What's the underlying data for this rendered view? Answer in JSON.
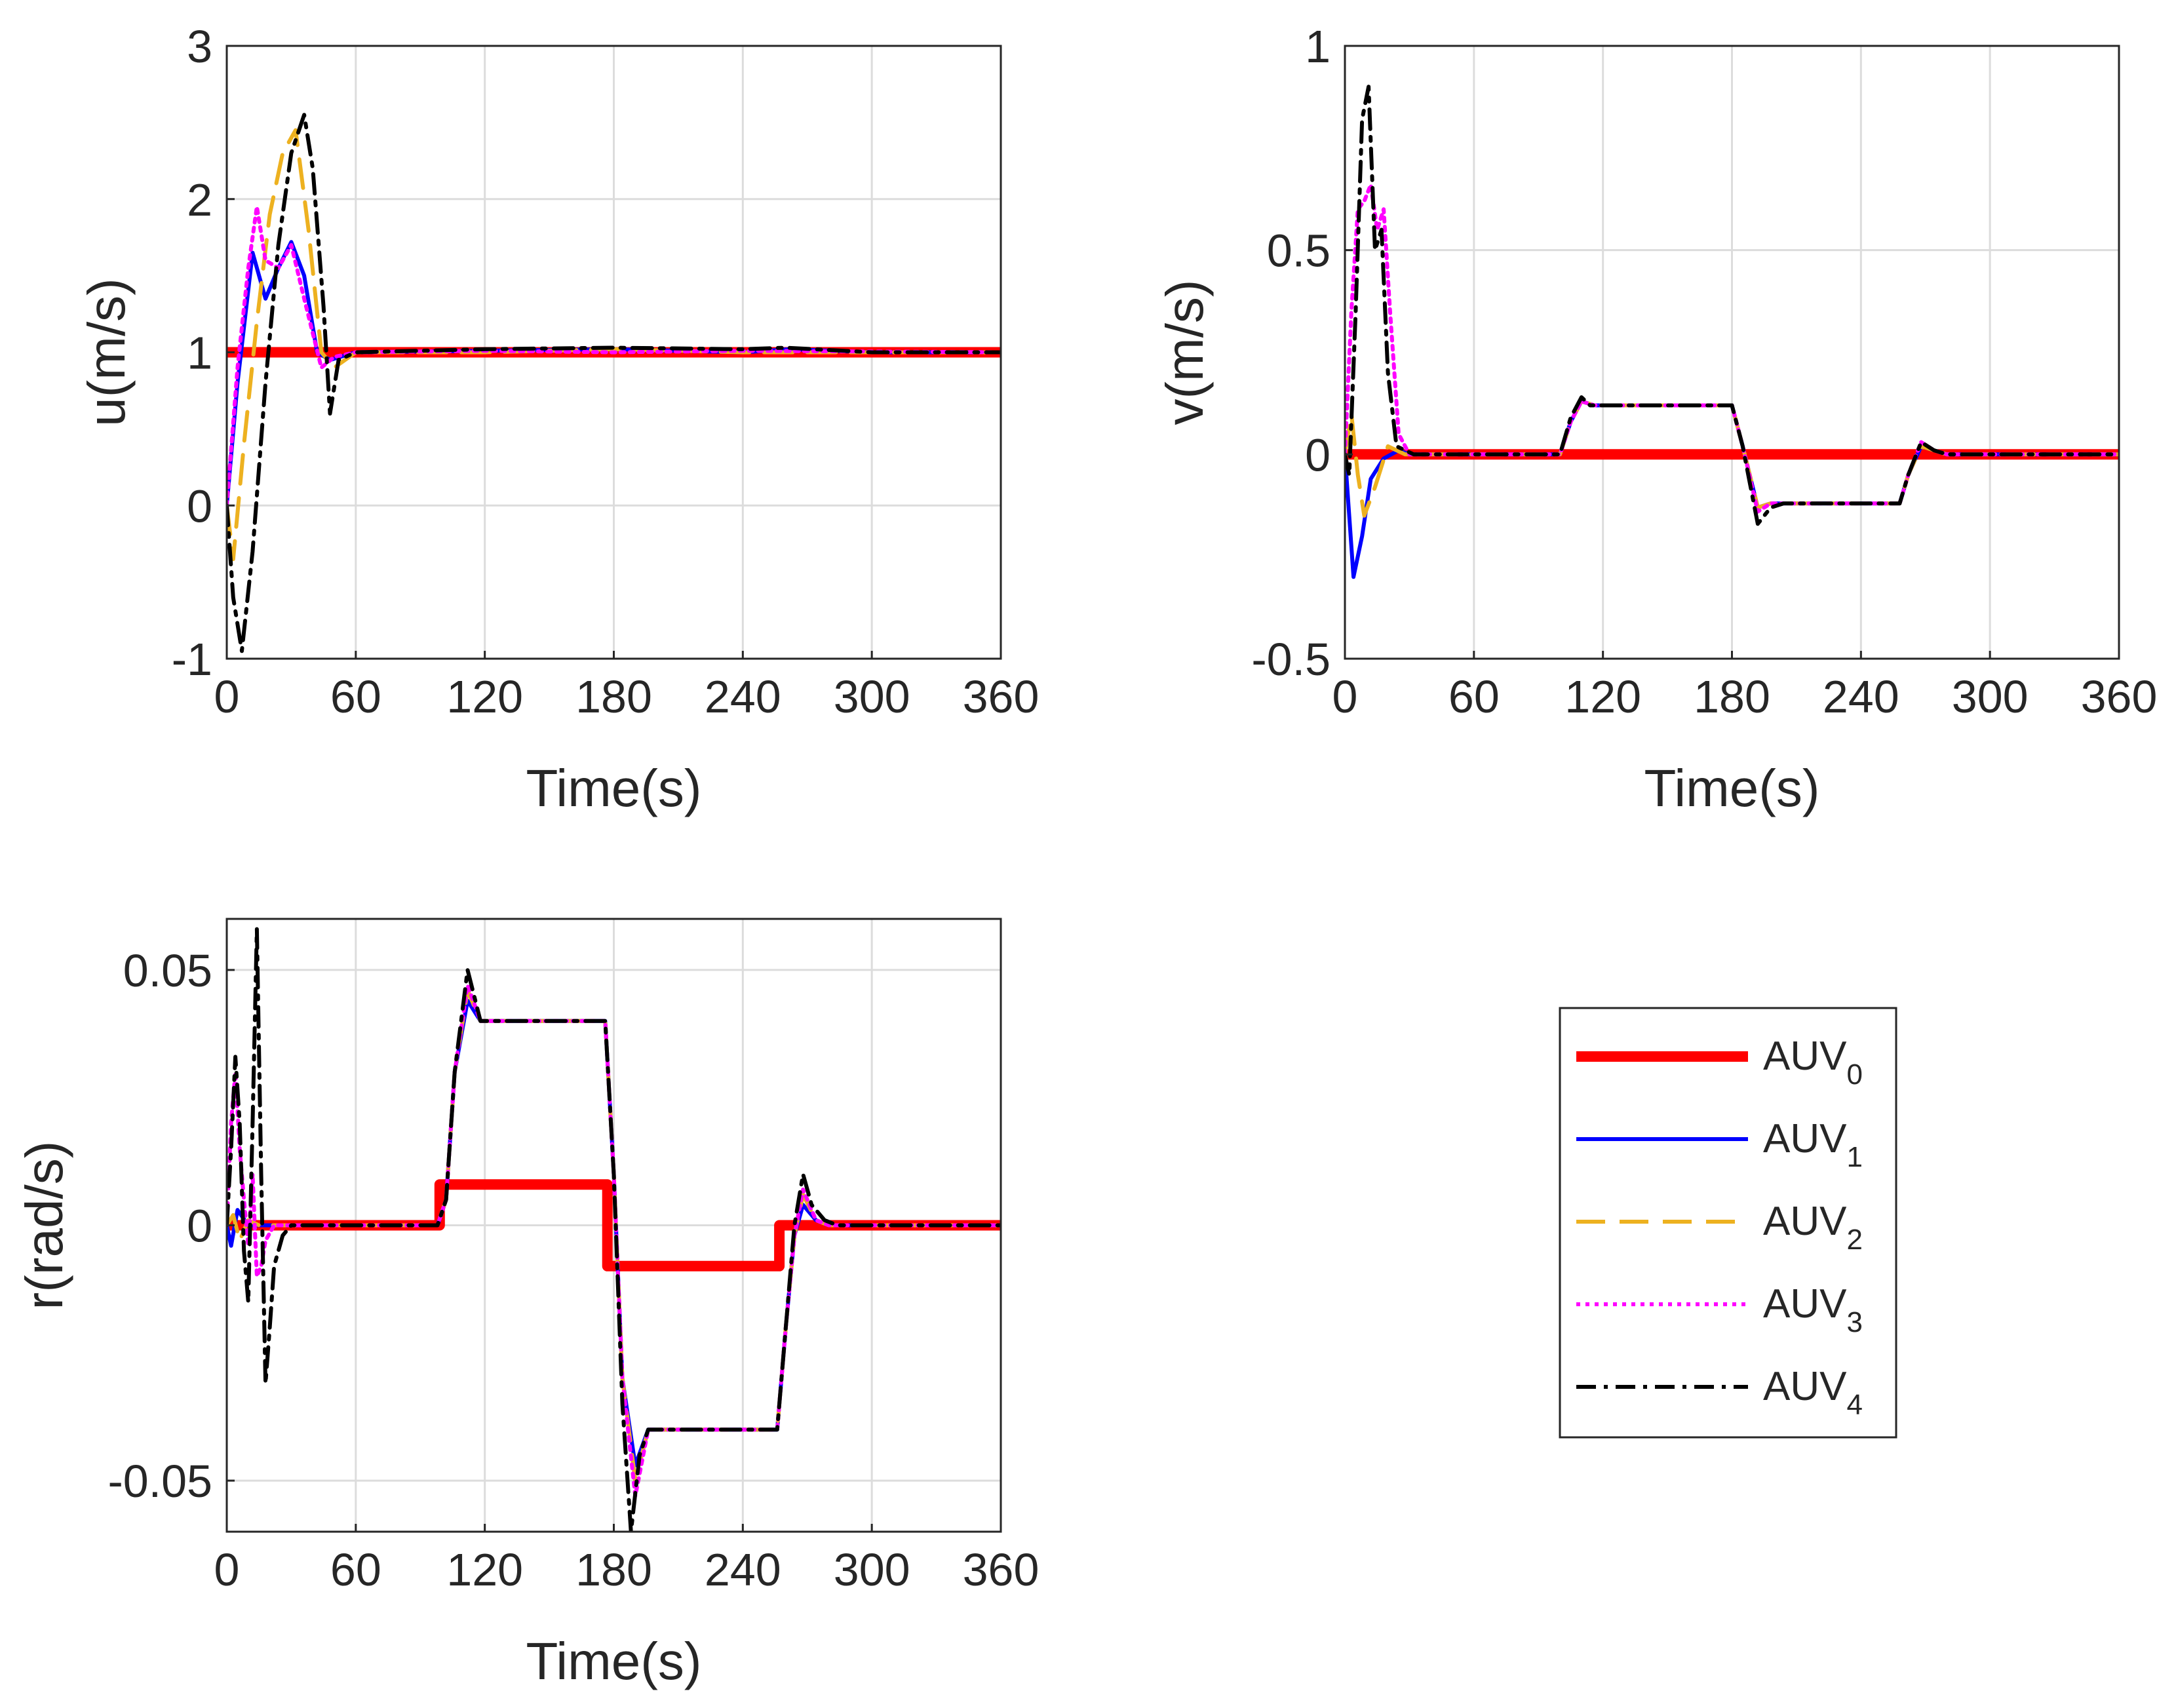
{
  "chart_data": [
    {
      "type": "line",
      "id": "u",
      "xlabel": "Time(s)",
      "ylabel": "u(m/s)",
      "xlim": [
        0,
        360
      ],
      "ylim": [
        -1,
        3
      ],
      "xticks": [
        0,
        60,
        120,
        180,
        240,
        300,
        360
      ],
      "yticks": [
        -1,
        0,
        1,
        2,
        3
      ],
      "xtick_labels": [
        "0",
        "60",
        "120",
        "180",
        "240",
        "300",
        "360"
      ],
      "ytick_labels": [
        "-1",
        "0",
        "1",
        "2",
        "3"
      ],
      "grid": true,
      "series": [
        {
          "name": "AUV0",
          "x": [
            0,
            360
          ],
          "y": [
            1,
            1
          ]
        },
        {
          "name": "AUV1",
          "x": [
            0,
            5,
            12,
            18,
            24,
            30,
            36,
            42,
            48,
            60,
            120,
            180,
            240,
            262,
            300,
            360
          ],
          "y": [
            0,
            0.8,
            1.65,
            1.35,
            1.55,
            1.72,
            1.5,
            1.0,
            0.95,
            1.0,
            1.01,
            1.02,
            1.0,
            1.02,
            1.0,
            1.0
          ]
        },
        {
          "name": "AUV2",
          "x": [
            0,
            3,
            8,
            14,
            20,
            26,
            32,
            38,
            44,
            50,
            60,
            120,
            180,
            240,
            360
          ],
          "y": [
            0,
            -0.35,
            0.4,
            1.2,
            1.9,
            2.3,
            2.45,
            1.8,
            1.0,
            0.9,
            1.0,
            1.0,
            1.02,
            1.0,
            1.0
          ]
        },
        {
          "name": "AUV3",
          "x": [
            0,
            5,
            10,
            14,
            18,
            24,
            30,
            36,
            44,
            50,
            60,
            120,
            180,
            240,
            360
          ],
          "y": [
            0,
            0.9,
            1.55,
            1.95,
            1.6,
            1.55,
            1.7,
            1.35,
            0.9,
            0.97,
            1.0,
            1.01,
            1.0,
            1.01,
            1.0
          ]
        },
        {
          "name": "AUV4",
          "x": [
            0,
            3,
            7,
            12,
            18,
            24,
            30,
            36,
            40,
            45,
            48,
            52,
            60,
            120,
            180,
            240,
            260,
            300,
            360
          ],
          "y": [
            0,
            -0.6,
            -0.95,
            -0.3,
            0.8,
            1.7,
            2.3,
            2.55,
            2.2,
            1.3,
            0.6,
            0.95,
            1.0,
            1.02,
            1.03,
            1.02,
            1.03,
            1.0,
            1.0
          ]
        }
      ]
    },
    {
      "type": "line",
      "id": "v",
      "xlabel": "Time(s)",
      "ylabel": "v(m/s)",
      "xlim": [
        0,
        360
      ],
      "ylim": [
        -0.5,
        1
      ],
      "xticks": [
        0,
        60,
        120,
        180,
        240,
        300,
        360
      ],
      "yticks": [
        -0.5,
        0,
        0.5,
        1
      ],
      "xtick_labels": [
        "0",
        "60",
        "120",
        "180",
        "240",
        "300",
        "360"
      ],
      "ytick_labels": [
        "-0.5",
        "0",
        "0.5",
        "1"
      ],
      "grid": true,
      "series": [
        {
          "name": "AUV0",
          "x": [
            0,
            360
          ],
          "y": [
            0,
            0
          ]
        },
        {
          "name": "AUV1",
          "x": [
            0,
            4,
            8,
            12,
            18,
            25,
            30,
            100,
            105,
            110,
            116,
            122,
            180,
            185,
            192,
            198,
            204,
            258,
            262,
            268,
            274,
            280,
            360
          ],
          "y": [
            0,
            -0.3,
            -0.2,
            -0.06,
            -0.01,
            0.01,
            0,
            0,
            0.08,
            0.13,
            0.12,
            0.12,
            0.12,
            0.02,
            -0.13,
            -0.12,
            -0.12,
            -0.12,
            -0.05,
            0.02,
            0.01,
            0,
            0
          ]
        },
        {
          "name": "AUV2",
          "x": [
            0,
            3,
            6,
            9,
            14,
            20,
            28,
            100,
            105,
            110,
            116,
            122,
            180,
            185,
            192,
            198,
            204,
            258,
            262,
            268,
            274,
            280,
            360
          ],
          "y": [
            0,
            0.1,
            -0.05,
            -0.15,
            -0.08,
            0.02,
            0,
            0,
            0.08,
            0.13,
            0.12,
            0.12,
            0.12,
            0.02,
            -0.13,
            -0.12,
            -0.12,
            -0.12,
            -0.05,
            0.02,
            0.01,
            0,
            0
          ]
        },
        {
          "name": "AUV3",
          "x": [
            0,
            3,
            6,
            9,
            12,
            15,
            18,
            21,
            25,
            30,
            100,
            105,
            110,
            116,
            122,
            180,
            185,
            192,
            198,
            204,
            258,
            262,
            268,
            274,
            280,
            360
          ],
          "y": [
            0,
            0.35,
            0.6,
            0.62,
            0.66,
            0.55,
            0.6,
            0.35,
            0.05,
            0,
            0,
            0.08,
            0.13,
            0.12,
            0.12,
            0.12,
            0.02,
            -0.14,
            -0.12,
            -0.12,
            -0.12,
            -0.05,
            0.03,
            0.01,
            0,
            0
          ]
        },
        {
          "name": "AUV4",
          "x": [
            0,
            2,
            5,
            8,
            11,
            14,
            17,
            20,
            24,
            28,
            32,
            100,
            105,
            110,
            114,
            122,
            180,
            185,
            192,
            198,
            204,
            258,
            262,
            268,
            274,
            280,
            360
          ],
          "y": [
            0,
            -0.05,
            0.35,
            0.82,
            0.9,
            0.5,
            0.55,
            0.2,
            0.02,
            0.01,
            0,
            0,
            0.09,
            0.14,
            0.12,
            0.12,
            0.12,
            0.02,
            -0.17,
            -0.13,
            -0.12,
            -0.12,
            -0.05,
            0.03,
            0.01,
            0,
            0
          ]
        }
      ]
    },
    {
      "type": "line",
      "id": "r",
      "xlabel": "Time(s)",
      "ylabel": "r(rad/s)",
      "xlim": [
        0,
        360
      ],
      "ylim": [
        -0.06,
        0.06
      ],
      "xticks": [
        0,
        60,
        120,
        180,
        240,
        300,
        360
      ],
      "yticks": [
        -0.05,
        0,
        0.05
      ],
      "xtick_labels": [
        "0",
        "60",
        "120",
        "180",
        "240",
        "300",
        "360"
      ],
      "ytick_labels": [
        "-0.05",
        "0",
        "0.05"
      ],
      "grid": true,
      "series": [
        {
          "name": "AUV0",
          "x": [
            0,
            99,
            99,
            177,
            177,
            257,
            257,
            360
          ],
          "y": [
            0,
            0,
            0.008,
            0.008,
            -0.008,
            -0.008,
            0,
            0
          ]
        },
        {
          "name": "AUV1",
          "x": [
            0,
            2,
            5,
            10,
            15,
            20,
            98,
            102,
            106,
            112,
            118,
            126,
            140,
            176,
            180,
            184,
            190,
            196,
            204,
            256,
            260,
            264,
            268,
            274,
            280,
            360
          ],
          "y": [
            0,
            -0.004,
            0.003,
            0,
            0,
            0,
            0,
            0.005,
            0.03,
            0.044,
            0.04,
            0.04,
            0.04,
            0.04,
            0.01,
            -0.03,
            -0.047,
            -0.04,
            -0.04,
            -0.04,
            -0.02,
            -0.002,
            0.004,
            0.001,
            0,
            0
          ]
        },
        {
          "name": "AUV2",
          "x": [
            0,
            3,
            6,
            10,
            15,
            20,
            98,
            102,
            106,
            112,
            118,
            126,
            140,
            176,
            180,
            184,
            190,
            196,
            204,
            256,
            260,
            264,
            268,
            274,
            280,
            360
          ],
          "y": [
            0,
            0.002,
            -0.003,
            0.001,
            0,
            0,
            0,
            0.005,
            0.03,
            0.046,
            0.04,
            0.04,
            0.04,
            0.04,
            0.01,
            -0.03,
            -0.05,
            -0.04,
            -0.04,
            -0.04,
            -0.02,
            -0.002,
            0.006,
            0.001,
            0,
            0
          ]
        },
        {
          "name": "AUV3",
          "x": [
            0,
            2,
            4,
            6,
            8,
            10,
            12,
            14,
            16,
            18,
            22,
            98,
            102,
            106,
            112,
            118,
            126,
            140,
            176,
            180,
            184,
            190,
            196,
            204,
            256,
            260,
            264,
            268,
            274,
            280,
            360
          ],
          "y": [
            0,
            0.02,
            0.03,
            0.015,
            0.005,
            -0.004,
            0.01,
            -0.01,
            -0.008,
            -0.003,
            0,
            0,
            0.005,
            0.03,
            0.047,
            0.04,
            0.04,
            0.04,
            0.04,
            0.01,
            -0.03,
            -0.053,
            -0.04,
            -0.04,
            -0.04,
            -0.02,
            -0.002,
            0.007,
            0.001,
            0,
            0
          ]
        },
        {
          "name": "AUV4",
          "x": [
            0,
            2,
            4,
            6,
            8,
            10,
            12,
            14,
            16,
            18,
            20,
            22,
            26,
            30,
            98,
            102,
            106,
            112,
            118,
            126,
            140,
            176,
            180,
            184,
            188,
            192,
            196,
            204,
            256,
            260,
            264,
            268,
            272,
            278,
            284,
            360
          ],
          "y": [
            0,
            0.015,
            0.033,
            0.02,
            -0.005,
            -0.015,
            0.02,
            0.058,
            0.01,
            -0.031,
            -0.02,
            -0.008,
            -0.002,
            0,
            0,
            0.005,
            0.03,
            0.05,
            0.04,
            0.04,
            0.04,
            0.04,
            0.01,
            -0.035,
            -0.06,
            -0.045,
            -0.04,
            -0.04,
            -0.04,
            -0.02,
            0,
            0.01,
            0.004,
            0.001,
            0,
            0
          ]
        }
      ]
    }
  ],
  "legend": {
    "position": "bottom-right",
    "entries": [
      {
        "name": "AUV0",
        "base": "AUV",
        "sub": "0",
        "color": "#ff0000",
        "style": "solid-thick"
      },
      {
        "name": "AUV1",
        "base": "AUV",
        "sub": "1",
        "color": "#0000ff",
        "style": "solid"
      },
      {
        "name": "AUV2",
        "base": "AUV",
        "sub": "2",
        "color": "#edb120",
        "style": "dashed"
      },
      {
        "name": "AUV3",
        "base": "AUV",
        "sub": "3",
        "color": "#ff00ff",
        "style": "dotted"
      },
      {
        "name": "AUV4",
        "base": "AUV",
        "sub": "4",
        "color": "#000000",
        "style": "dash-dot"
      }
    ]
  },
  "colors": {
    "AUV0": "#ff0000",
    "AUV1": "#0000ff",
    "AUV2": "#edb120",
    "AUV3": "#ff00ff",
    "AUV4": "#000000",
    "grid": "#dcdcdc",
    "axis": "#262626"
  }
}
